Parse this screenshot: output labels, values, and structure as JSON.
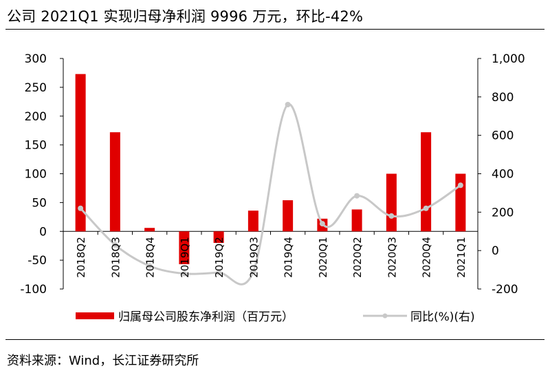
{
  "title": "公司 2021Q1 实现归母净利润 9996 万元，环比-42%",
  "source": "资料来源：Wind，长江证券研究所",
  "chart_data": {
    "type": "bar",
    "categories": [
      "2018Q2",
      "2018Q3",
      "2018Q4",
      "2019Q1",
      "2019Q2",
      "2019Q3",
      "2019Q4",
      "2020Q1",
      "2020Q2",
      "2020Q3",
      "2020Q4",
      "2021Q1"
    ],
    "series": [
      {
        "name": "归属母公司股东净利润（百万元）",
        "type": "bar",
        "axis": "left",
        "color": "#e00000",
        "values": [
          273,
          172,
          6,
          -57,
          -20,
          36,
          54,
          22,
          38,
          100,
          172,
          100
        ]
      },
      {
        "name": "同比(%)(右)",
        "type": "line",
        "axis": "right",
        "color": "#c8c8c8",
        "values": [
          220,
          30,
          -80,
          -120,
          -115,
          -110,
          760,
          140,
          285,
          180,
          220,
          340
        ]
      }
    ],
    "y_left": {
      "min": -100,
      "max": 300,
      "ticks": [
        "-100",
        "-50",
        "0",
        "50",
        "100",
        "150",
        "200",
        "250",
        "300"
      ]
    },
    "y_right": {
      "min": -200,
      "max": 1000,
      "ticks": [
        "-200",
        "0",
        "200",
        "400",
        "600",
        "800",
        "1,000"
      ]
    },
    "legend_position": "bottom",
    "grid": false
  }
}
